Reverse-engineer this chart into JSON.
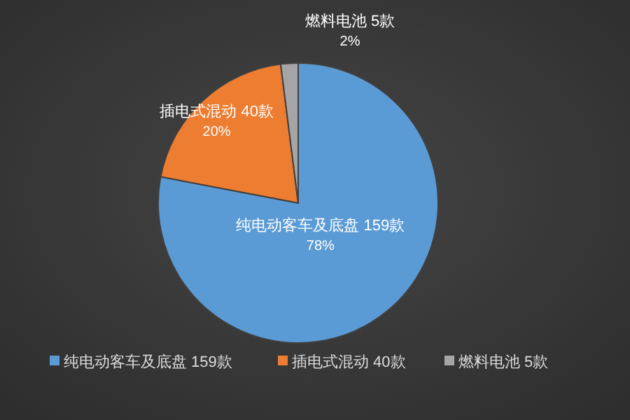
{
  "chart_data": {
    "type": "pie",
    "categories": [
      "纯电动客车及底盘 159款",
      "插电式混动 40款",
      "燃料电池 5款"
    ],
    "values": [
      78,
      20,
      2
    ],
    "value_labels": [
      "78%",
      "20%",
      "2%"
    ],
    "colors": [
      "#5b9bd5",
      "#ed7d31",
      "#a5a5a5"
    ],
    "legend": "bottom"
  }
}
